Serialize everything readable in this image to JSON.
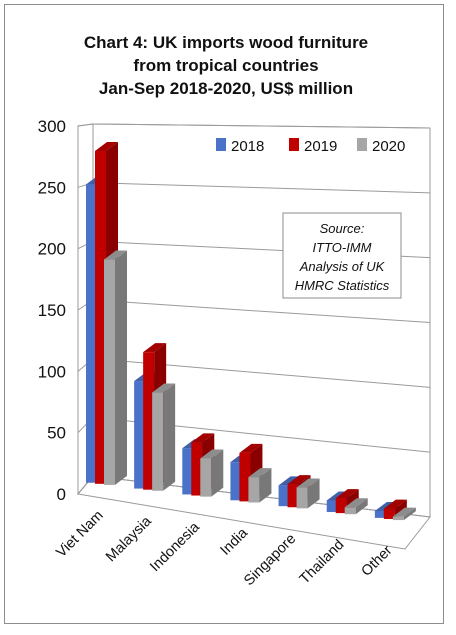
{
  "chart_data": {
    "type": "bar",
    "title": [
      "Chart 4: UK imports wood furniture",
      "from tropical countries",
      "Jan-Sep 2018-2020, US$ million"
    ],
    "categories": [
      "Viet Nam",
      "Malaysia",
      "Indonesia",
      "India",
      "Singapore",
      "Thailand",
      "Other"
    ],
    "series": [
      {
        "name": "2018",
        "values": [
          258,
          93,
          40,
          33,
          18,
          10,
          6
        ],
        "color": "#4a72c8"
      },
      {
        "name": "2019",
        "values": [
          288,
          119,
          46,
          42,
          20,
          13,
          9
        ],
        "color": "#c00000"
      },
      {
        "name": "2020",
        "values": [
          195,
          85,
          33,
          22,
          18,
          6,
          3
        ],
        "color": "#a6a6a6"
      }
    ],
    "yticks": [
      0,
      50,
      100,
      150,
      200,
      250,
      300
    ],
    "ylim": [
      0,
      300
    ],
    "xlabel": "",
    "ylabel": "",
    "legend_position": "top-right",
    "grid": true,
    "three_d": true,
    "source_note": [
      "Source:",
      "ITTO-IMM",
      "Analysis of UK",
      "HMRC Statistics"
    ]
  }
}
